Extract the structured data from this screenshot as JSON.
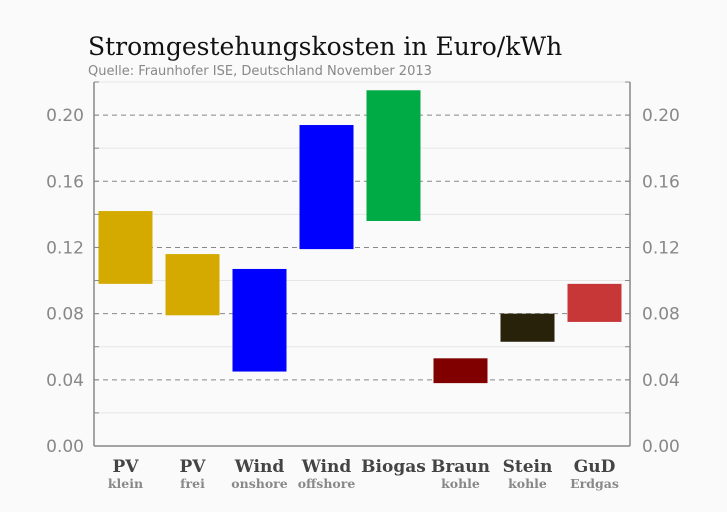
{
  "chart_data": {
    "type": "bar",
    "subtype": "floating-range",
    "title": "Stromgestehungskosten in Euro/kWh",
    "subtitle": "Quelle: Fraunhofer ISE, Deutschland November 2013",
    "ylim": [
      0,
      0.22
    ],
    "yticks": [
      "0.00",
      "0.04",
      "0.08",
      "0.12",
      "0.16",
      "0.20"
    ],
    "grid": true,
    "categories": [
      {
        "line1": "PV",
        "line2": "klein",
        "low": 0.098,
        "high": 0.142,
        "color": "#d4aa00"
      },
      {
        "line1": "PV",
        "line2": "frei",
        "low": 0.079,
        "high": 0.116,
        "color": "#d4aa00"
      },
      {
        "line1": "Wind",
        "line2": "onshore",
        "low": 0.045,
        "high": 0.107,
        "color": "#0000ff"
      },
      {
        "line1": "Wind",
        "line2": "offshore",
        "low": 0.119,
        "high": 0.194,
        "color": "#0000ff"
      },
      {
        "line1": "Biogas",
        "line2": "",
        "low": 0.136,
        "high": 0.215,
        "color": "#00aa44"
      },
      {
        "line1": "Braun",
        "line2": "kohle",
        "low": 0.038,
        "high": 0.053,
        "color": "#800000"
      },
      {
        "line1": "Stein",
        "line2": "kohle",
        "low": 0.063,
        "high": 0.08,
        "color": "#28220a"
      },
      {
        "line1": "GuD",
        "line2": "Erdgas",
        "low": 0.075,
        "high": 0.098,
        "color": "#c83737"
      }
    ]
  }
}
